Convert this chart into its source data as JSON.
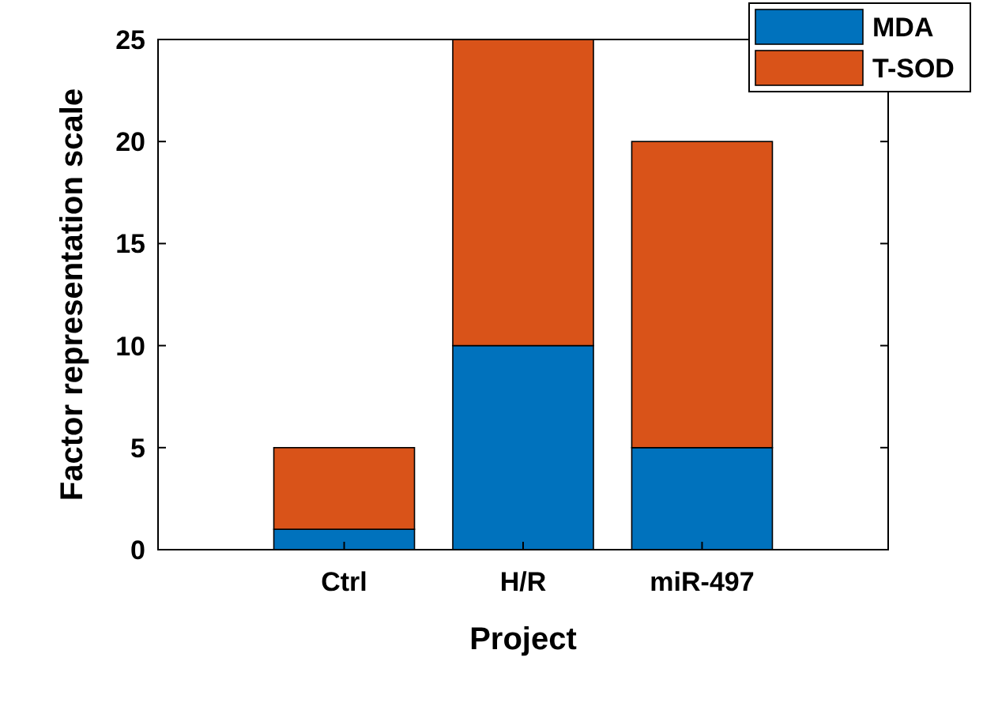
{
  "chart_data": {
    "type": "bar",
    "stacked": true,
    "xlabel": "Project",
    "ylabel": "Factor representation scale",
    "categories": [
      "Ctrl",
      "H/R",
      "miR-497"
    ],
    "series": [
      {
        "name": "MDA",
        "color": "#0072bd",
        "values": [
          1,
          10,
          5
        ]
      },
      {
        "name": "T-SOD",
        "color": "#d95319",
        "values": [
          4,
          15,
          15
        ]
      }
    ],
    "ylim": [
      0,
      25
    ],
    "yticks": [
      0,
      5,
      10,
      15,
      20,
      25
    ],
    "legend": "top right"
  }
}
